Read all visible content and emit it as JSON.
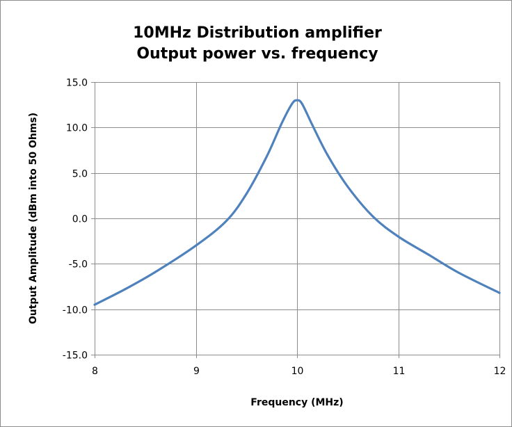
{
  "chart_data": {
    "type": "line",
    "title": [
      "10MHz Distribution amplifier",
      "Output power vs. frequency"
    ],
    "xlabel": "Frequency (MHz)",
    "ylabel": "Output Amplitude (dBm into 50 Ohms)",
    "xlim": [
      8,
      12
    ],
    "ylim": [
      -15,
      15
    ],
    "x_ticks": [
      "8",
      "9",
      "10",
      "11",
      "12"
    ],
    "y_ticks": [
      "15.0",
      "10.0",
      "5.0",
      "0.0",
      "-5.0",
      "-10.0",
      "-15.0"
    ],
    "grid": true,
    "legend": "none",
    "series": [
      {
        "color": "#4f81bd",
        "x": [
          8.0,
          8.3,
          8.6,
          9.0,
          9.3,
          9.5,
          9.7,
          9.85,
          9.95,
          10.0,
          10.05,
          10.15,
          10.3,
          10.5,
          10.75,
          11.0,
          11.3,
          11.6,
          12.0
        ],
        "y": [
          -9.5,
          -7.8,
          -5.9,
          -3.0,
          -0.3,
          2.7,
          6.8,
          10.5,
          12.6,
          13.0,
          12.6,
          10.3,
          7.0,
          3.5,
          0.2,
          -2.0,
          -4.0,
          -6.0,
          -8.2
        ]
      }
    ]
  }
}
